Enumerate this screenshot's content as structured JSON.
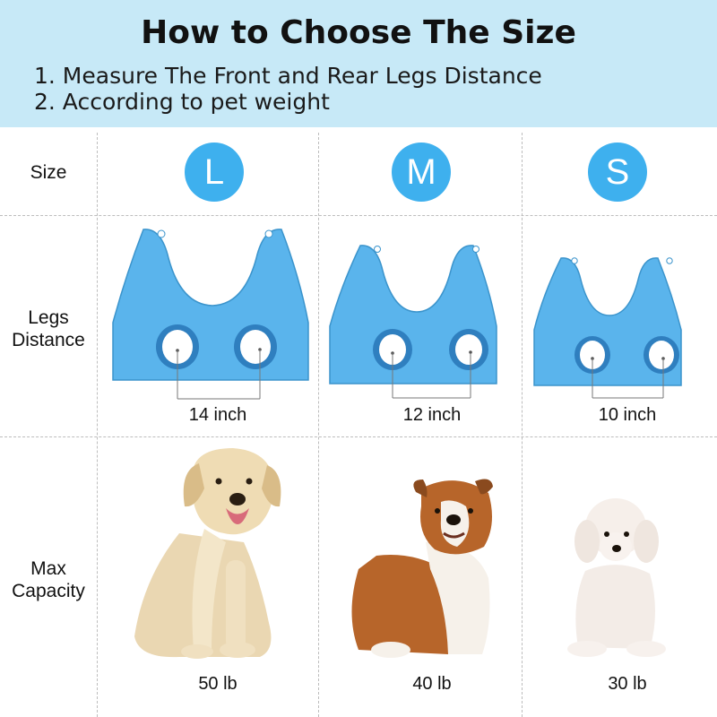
{
  "header": {
    "title": "How to Choose The Size",
    "instructions": [
      "1. Measure The Front and Rear Legs Distance",
      "2. According to pet weight"
    ]
  },
  "rows": {
    "size": "Size",
    "legs_distance": [
      "Legs",
      "Distance"
    ],
    "max_capacity": [
      "Max",
      "Capacity"
    ]
  },
  "sizes": [
    {
      "label": "L",
      "legs_distance": "14 inch",
      "capacity": "50 lb",
      "dog": "golden-retriever"
    },
    {
      "label": "M",
      "legs_distance": "12 inch",
      "capacity": "40 lb",
      "dog": "bulldog"
    },
    {
      "label": "S",
      "legs_distance": "10 inch",
      "capacity": "30 lb",
      "dog": "poodle"
    }
  ],
  "colors": {
    "banner": "#c7e9f7",
    "badge": "#3eb0ee",
    "harness": "#5ab4ec"
  }
}
